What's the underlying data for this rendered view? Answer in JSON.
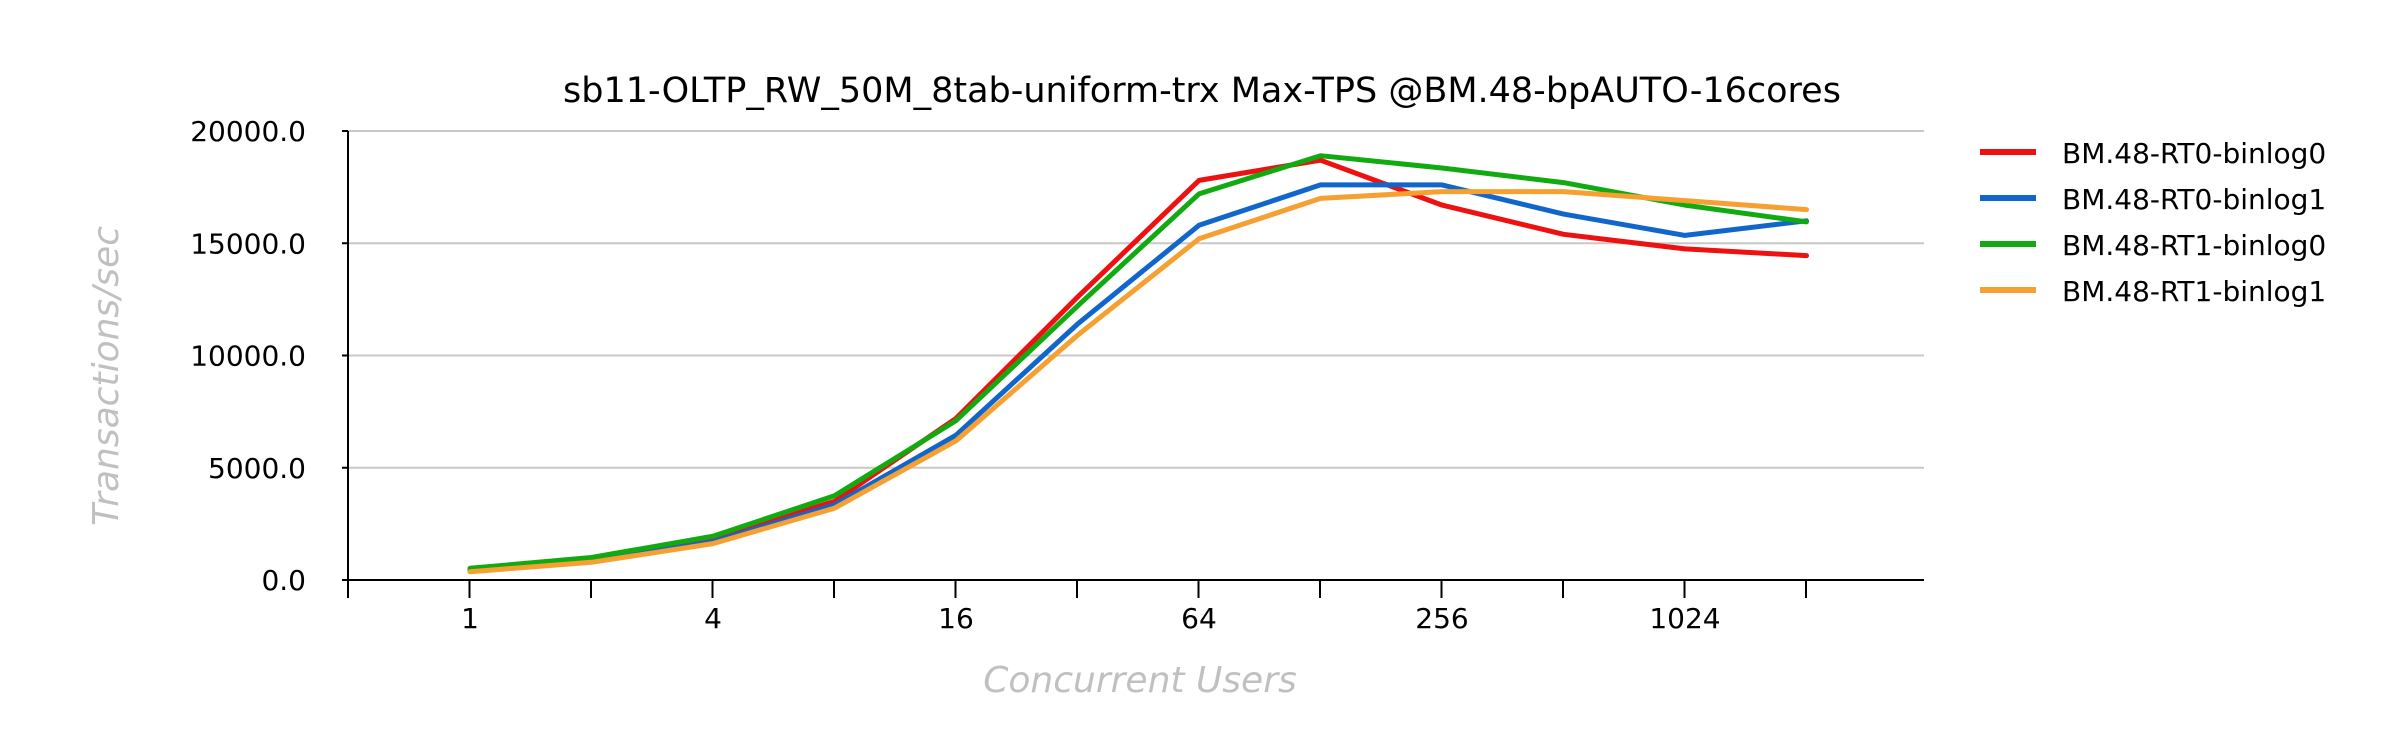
{
  "chart_data": {
    "type": "line",
    "title": "sb11-OLTP_RW_50M_8tab-uniform-trx Max-TPS @BM.48-bpAUTO-16cores",
    "xlabel": "Concurrent Users",
    "ylabel": "Transactions/sec",
    "x": [
      1,
      2,
      4,
      8,
      16,
      32,
      64,
      128,
      256,
      512,
      1024,
      2048
    ],
    "x_tick_labels": [
      "1",
      "4",
      "16",
      "64",
      "256",
      "1024"
    ],
    "x_tick_values": [
      1,
      4,
      16,
      64,
      256,
      1024
    ],
    "x_scale": "log2",
    "y_tick_labels": [
      "0.0",
      "5000.0",
      "10000.0",
      "15000.0",
      "20000.0"
    ],
    "y_tick_values": [
      0,
      5000,
      10000,
      15000,
      20000
    ],
    "ylim": [
      0,
      20000
    ],
    "grid": "horizontal",
    "legend": "right",
    "series": [
      {
        "name": "BM.48-RT0-binlog0",
        "color": "#ee1111",
        "values": [
          480,
          920,
          1850,
          3500,
          7200,
          12600,
          17800,
          18700,
          16700,
          15400,
          14750,
          14450
        ]
      },
      {
        "name": "BM.48-RT0-binlog1",
        "color": "#1166cc",
        "values": [
          420,
          830,
          1700,
          3350,
          6450,
          11400,
          15800,
          17600,
          17600,
          16300,
          15350,
          16000
        ]
      },
      {
        "name": "BM.48-RT1-binlog0",
        "color": "#11aa11",
        "values": [
          520,
          1000,
          1950,
          3750,
          7100,
          12200,
          17200,
          18900,
          18350,
          17700,
          16700,
          15950
        ]
      },
      {
        "name": "BM.48-RT1-binlog1",
        "color": "#f5a030",
        "values": [
          370,
          790,
          1620,
          3200,
          6200,
          10900,
          15200,
          17000,
          17300,
          17300,
          16900,
          16500
        ]
      }
    ]
  }
}
